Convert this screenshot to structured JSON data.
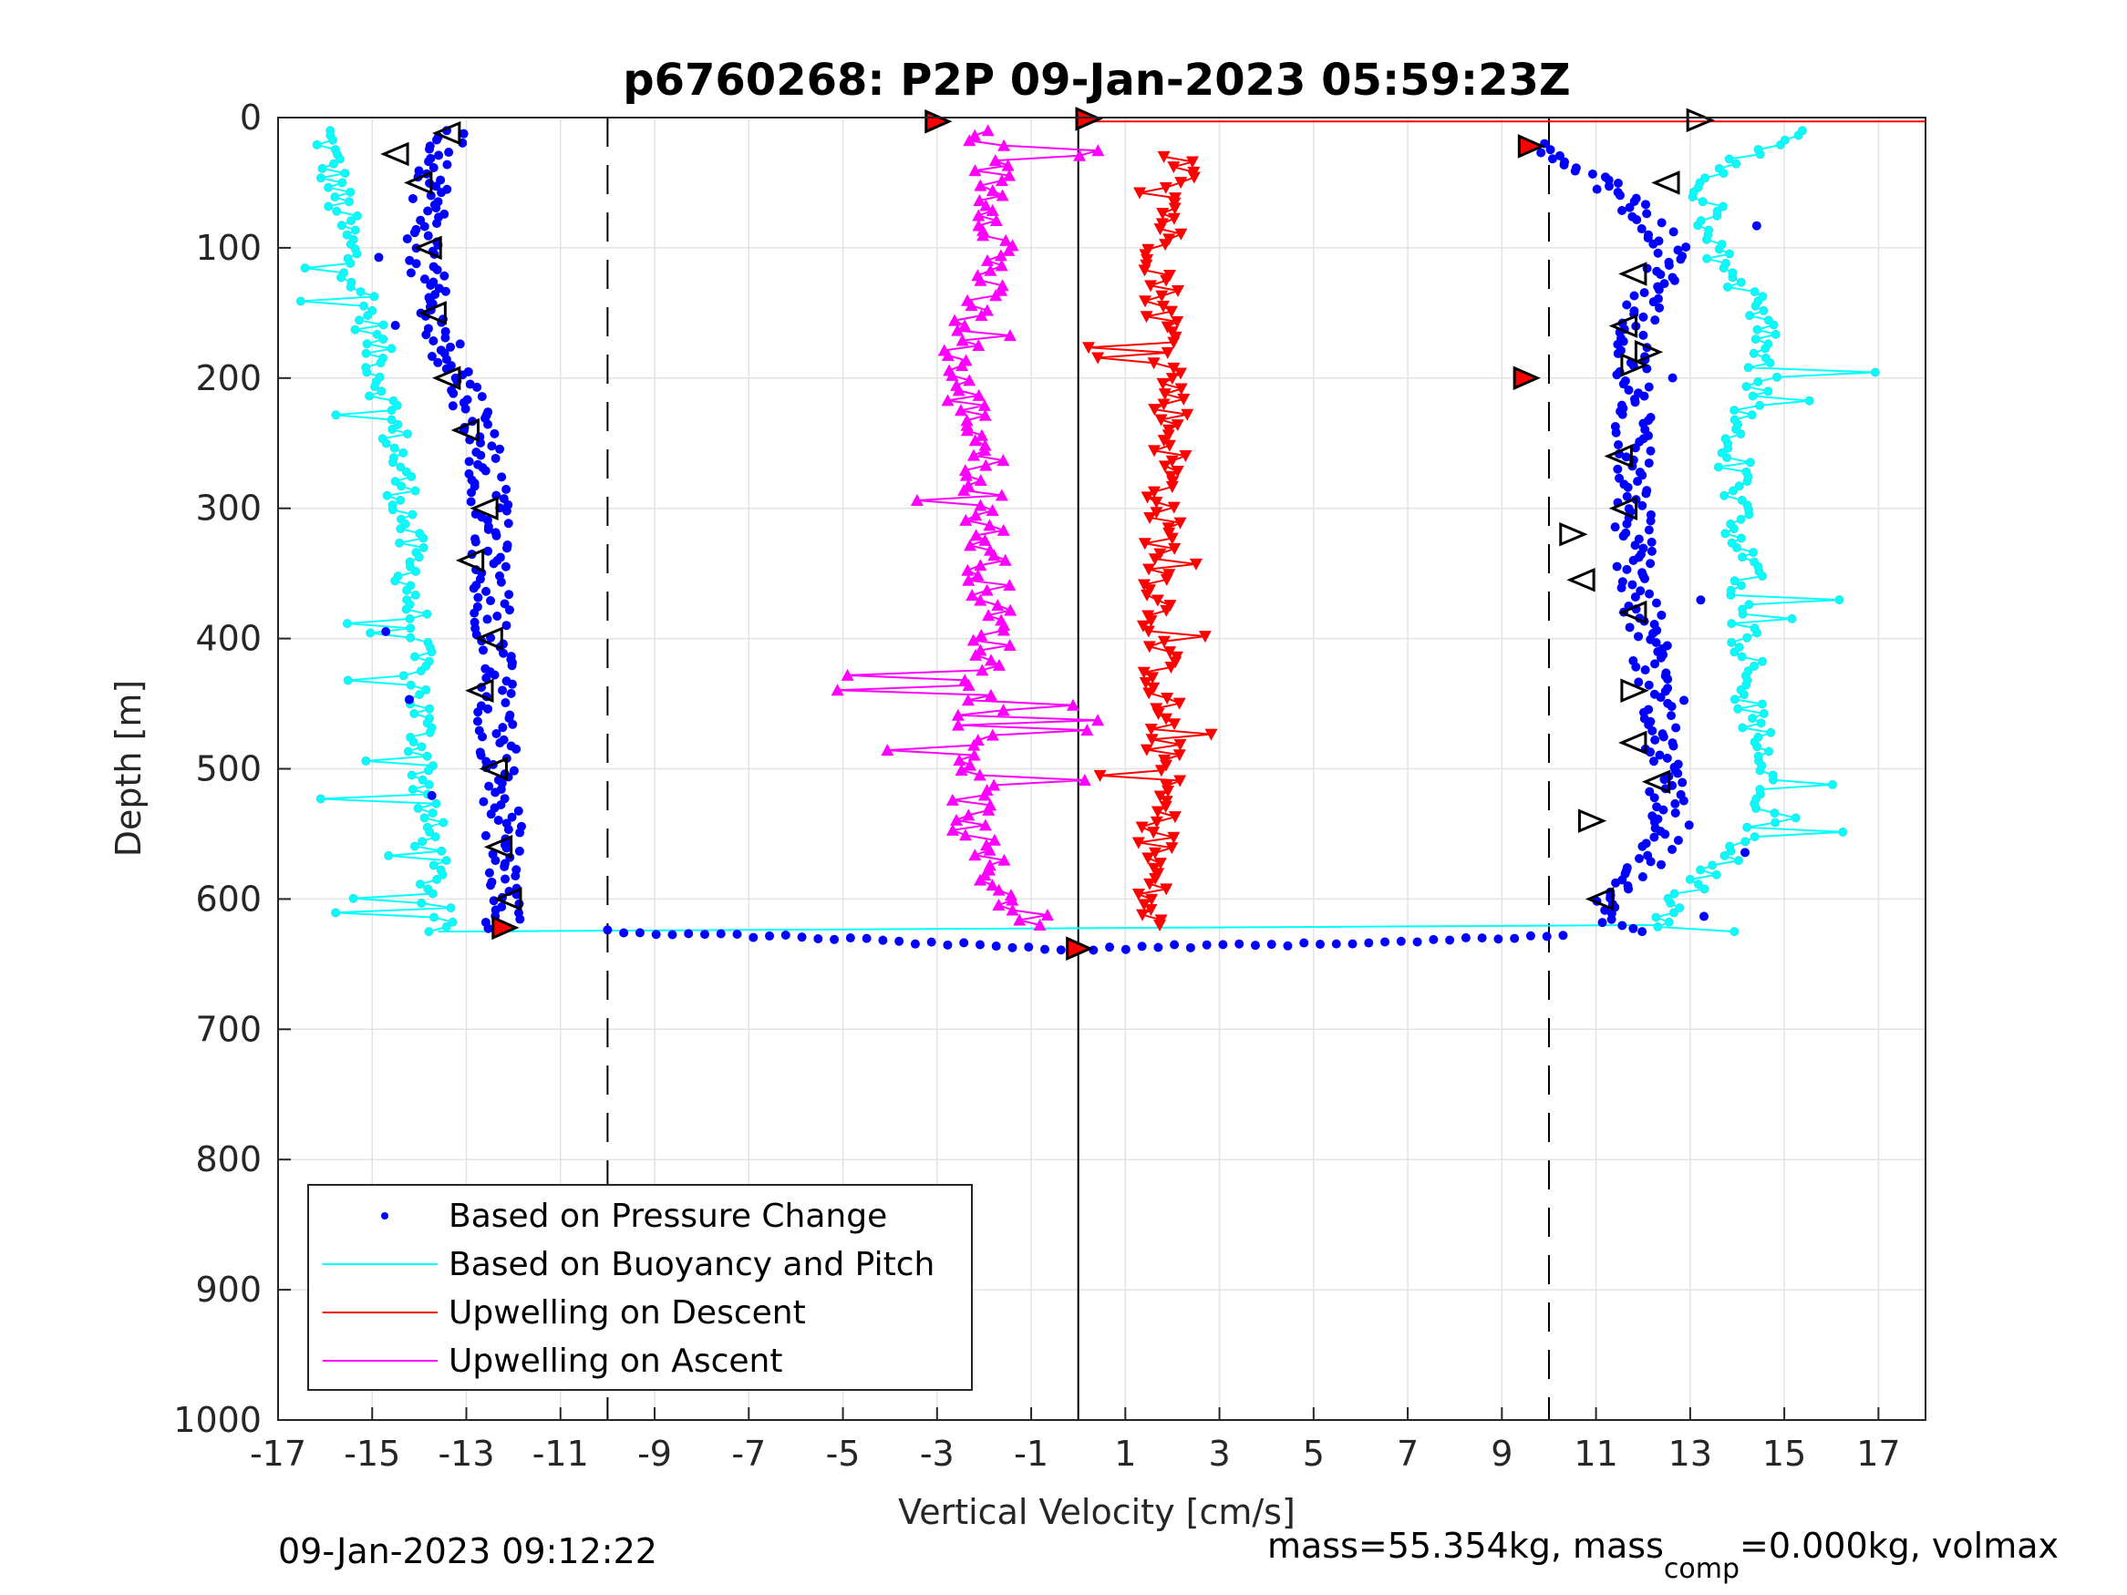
{
  "chart_data": {
    "type": "scatter",
    "title": "p6760268: P2P 09-Jan-2023 05:59:23Z",
    "xlabel": "Vertical Velocity [cm/s]",
    "ylabel": "Depth [m]",
    "xlim": [
      -17,
      18
    ],
    "ylim": [
      0,
      1000
    ],
    "y_reversed": true,
    "grid": true,
    "x_ticks": [
      -17,
      -15,
      -13,
      -11,
      -9,
      -7,
      -5,
      -3,
      -1,
      1,
      3,
      5,
      7,
      9,
      11,
      13,
      15,
      17
    ],
    "x_tick_labels": [
      "-17",
      "-15",
      "-13",
      "-11",
      "-9",
      "-7",
      "-5",
      "-3",
      "-1",
      "1",
      "3",
      "5",
      "7",
      "9",
      "11",
      "13",
      "15",
      "17"
    ],
    "y_ticks": [
      0,
      100,
      200,
      300,
      400,
      500,
      600,
      700,
      800,
      900,
      1000
    ],
    "y_tick_labels": [
      "0",
      "100",
      "200",
      "300",
      "400",
      "500",
      "600",
      "700",
      "800",
      "900",
      "1000"
    ],
    "reference_lines": {
      "dashed_x": [
        -10,
        10
      ],
      "solid_x": [
        0
      ]
    },
    "legend_position": "bottom-left",
    "legend": [
      {
        "label": "Based on Pressure Change",
        "color": "#0000ff",
        "style": "dot"
      },
      {
        "label": "Based on Buoyancy and Pitch",
        "color": "#00ffff",
        "style": "line"
      },
      {
        "label": "Upwelling on Descent",
        "color": "#ff0000",
        "style": "line"
      },
      {
        "label": "Upwelling on Ascent",
        "color": "#ff00ff",
        "style": "line"
      }
    ],
    "series": [
      {
        "name": "Based on Pressure Change",
        "color": "#0000ff",
        "descent": {
          "depth": [
            10,
            50,
            100,
            150,
            200,
            250,
            300,
            350,
            400,
            450,
            500,
            550,
            600,
            625
          ],
          "velocity": [
            -13.3,
            -13.7,
            -13.9,
            -13.8,
            -13.1,
            -12.6,
            -12.5,
            -12.5,
            -12.4,
            -12.4,
            -12.3,
            -12.2,
            -12.2,
            -12.2
          ]
        },
        "ascent": {
          "depth": [
            625,
            600,
            550,
            500,
            450,
            400,
            350,
            300,
            250,
            200,
            150,
            100,
            50,
            20
          ],
          "velocity": [
            11.6,
            11.3,
            12.6,
            12.5,
            12.3,
            12.1,
            11.8,
            11.8,
            11.8,
            11.8,
            11.9,
            12.7,
            11.2,
            9.8
          ]
        },
        "bottom_turn": {
          "depth": [
            625,
            630,
            634,
            637,
            638,
            637,
            634,
            630,
            628
          ],
          "velocity": [
            -10.0,
            -5.0,
            -3.0,
            -1.0,
            0.0,
            1.5,
            5.0,
            8.5,
            10.3
          ]
        }
      },
      {
        "name": "Based on Buoyancy and Pitch",
        "color": "#00ffff",
        "descent": {
          "depth": [
            10,
            50,
            100,
            150,
            200,
            250,
            300,
            350,
            400,
            450,
            500,
            550,
            600,
            625
          ],
          "velocity": [
            -16.0,
            -15.8,
            -15.5,
            -15.1,
            -14.8,
            -14.5,
            -14.3,
            -14.2,
            -14.1,
            -14.0,
            -13.9,
            -13.8,
            -13.7,
            -13.6
          ]
        },
        "ascent": {
          "depth": [
            625,
            600,
            550,
            500,
            450,
            400,
            350,
            300,
            250,
            200,
            150,
            100,
            50,
            10
          ],
          "velocity": [
            12.3,
            12.8,
            14.5,
            14.5,
            14.3,
            14.2,
            14.2,
            14.0,
            13.9,
            14.5,
            14.5,
            13.5,
            13.3,
            15.2
          ]
        }
      },
      {
        "name": "Upwelling on Descent",
        "color": "#ff0000",
        "depth": [
          30,
          100,
          150,
          200,
          250,
          300,
          350,
          400,
          450,
          500,
          550,
          600,
          620
        ],
        "velocity": [
          2.3,
          1.8,
          1.8,
          2.0,
          2.0,
          1.8,
          1.8,
          1.7,
          1.8,
          1.8,
          1.7,
          1.5,
          1.5
        ]
      },
      {
        "name": "Upwelling on Ascent",
        "color": "#ff00ff",
        "depth": [
          10,
          50,
          100,
          150,
          200,
          250,
          300,
          350,
          400,
          450,
          500,
          550,
          600,
          620
        ],
        "velocity": [
          -2.0,
          -1.8,
          -1.6,
          -2.3,
          -2.6,
          -2.0,
          -2.0,
          -1.9,
          -1.8,
          -2.1,
          -2.2,
          -2.3,
          -1.5,
          -0.8
        ]
      }
    ],
    "markers": {
      "open_descent": [
        [
          -13.4,
          12
        ],
        [
          -14.5,
          28
        ],
        [
          -14.0,
          50
        ],
        [
          -13.8,
          100
        ],
        [
          -13.7,
          150
        ],
        [
          -13.4,
          200
        ],
        [
          -13.0,
          240
        ],
        [
          -12.6,
          300
        ],
        [
          -12.9,
          340
        ],
        [
          -12.5,
          400
        ],
        [
          -12.7,
          440
        ],
        [
          -12.4,
          500
        ],
        [
          -12.3,
          560
        ],
        [
          -12.1,
          600
        ]
      ],
      "open_ascent": [
        [
          13.2,
          2
        ],
        [
          11.8,
          120
        ],
        [
          11.6,
          160
        ],
        [
          11.8,
          190
        ],
        [
          11.5,
          260
        ],
        [
          11.6,
          300
        ],
        [
          10.5,
          320
        ],
        [
          10.7,
          355
        ],
        [
          11.8,
          380
        ],
        [
          11.8,
          440
        ],
        [
          11.8,
          480
        ],
        [
          12.3,
          510
        ],
        [
          10.9,
          540
        ],
        [
          11.1,
          600
        ],
        [
          12.5,
          50
        ],
        [
          12.1,
          180
        ]
      ],
      "red_filled": [
        [
          -3.0,
          3
        ],
        [
          0.2,
          1
        ],
        [
          9.6,
          22
        ],
        [
          9.5,
          200
        ],
        [
          -12.2,
          622
        ],
        [
          0.0,
          638
        ]
      ]
    },
    "footer_left": "09-Jan-2023 09:12:22",
    "footer_right_prefix": "mass=55.354kg, mass",
    "footer_right_sub": "comp",
    "footer_right_suffix": "=0.000kg, volmax"
  }
}
